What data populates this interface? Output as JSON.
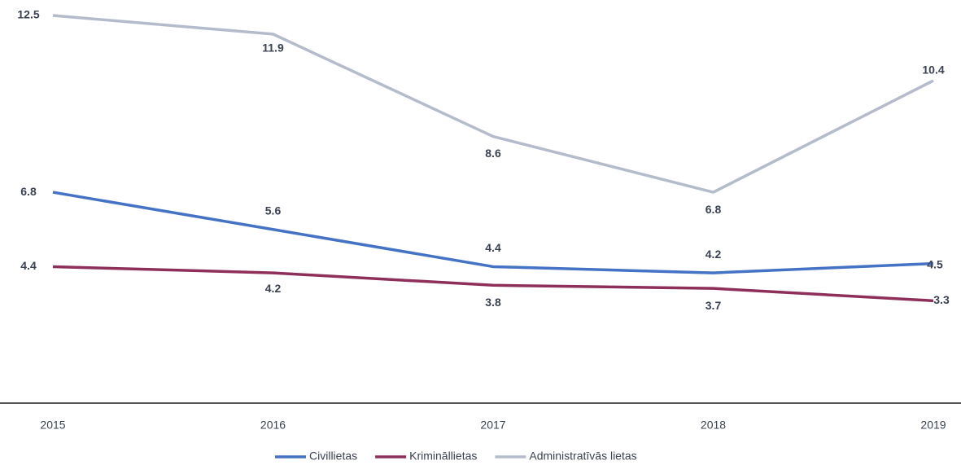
{
  "chart_data": {
    "type": "line",
    "categories": [
      "2015",
      "2016",
      "2017",
      "2018",
      "2019"
    ],
    "series": [
      {
        "name": "Civillietas",
        "color": "#4472c4",
        "values": [
          6.8,
          5.6,
          4.4,
          4.2,
          4.5
        ]
      },
      {
        "name": "Krimināllietas",
        "color": "#8e2f5a",
        "values": [
          4.4,
          4.2,
          3.8,
          3.7,
          3.3
        ]
      },
      {
        "name": "Administratīvās lietas",
        "color": "#b4bccc",
        "values": [
          12.5,
          11.9,
          8.6,
          6.8,
          10.4
        ]
      }
    ],
    "ylim": [
      0,
      13
    ]
  }
}
